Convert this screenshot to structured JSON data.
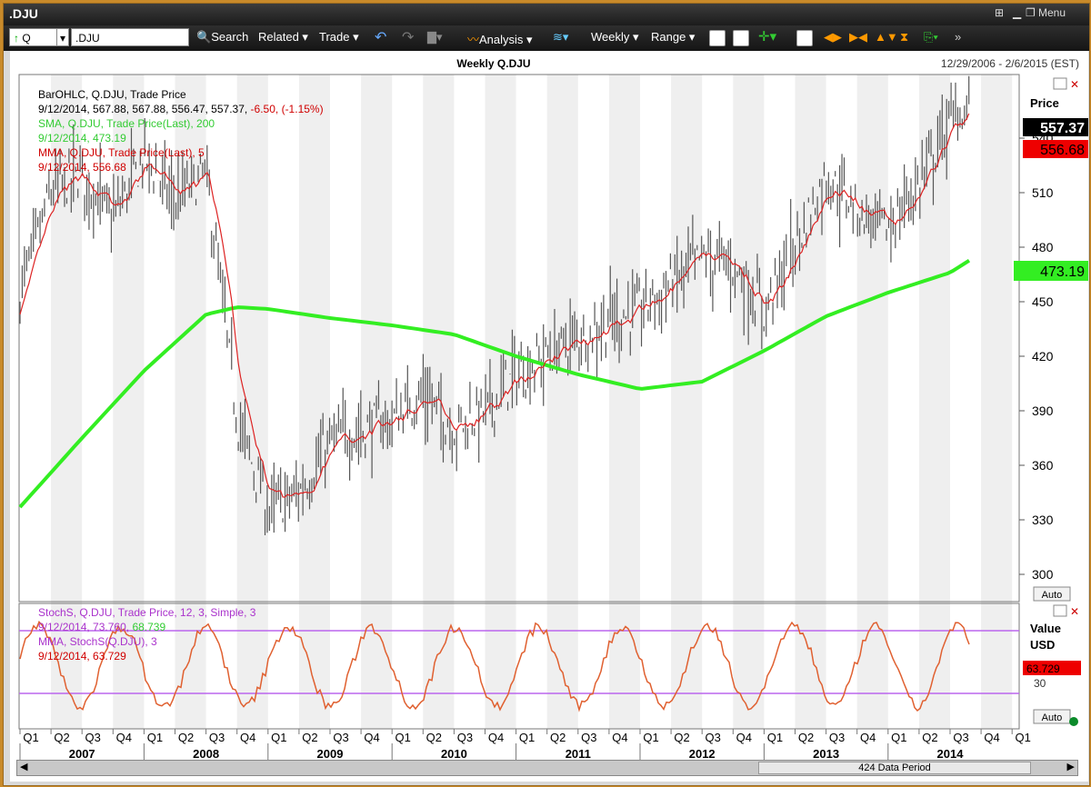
{
  "window": {
    "title": ".DJU",
    "menu_label": "Menu"
  },
  "toolbar": {
    "symbol_type": "Q",
    "symbol": ".DJU",
    "search_label": "Search",
    "related_label": "Related",
    "trade_label": "Trade",
    "analysis_label": "Analysis",
    "period_label": "Weekly",
    "range_label": "Range"
  },
  "header": {
    "title": "Weekly Q.DJU",
    "date_range": "12/29/2006 - 2/6/2015 (EST)"
  },
  "price_panel": {
    "legend": [
      {
        "text": "BarOHLC, Q.DJU, Trade Price",
        "color": "#000000"
      },
      {
        "text": "9/12/2014, 567.88, 567.88, 556.47, 557.37, ",
        "color": "#000000",
        "extra": "-6.50, (-1.15%)",
        "extra_color": "#d00000"
      },
      {
        "text": "SMA, Q.DJU, Trade Price(Last),  200",
        "color": "#33cc33"
      },
      {
        "text": "9/12/2014, 473.19",
        "color": "#33cc33"
      },
      {
        "text": "MMA, Q.DJU, Trade Price(Last),  5",
        "color": "#d00000"
      },
      {
        "text": "9/12/2014, 556.68",
        "color": "#d00000"
      }
    ],
    "axis_title": "Price",
    "y_ticks": [
      "540",
      "510",
      "480",
      "450",
      "420",
      "390",
      "360",
      "330",
      "300"
    ],
    "badges": {
      "last": "557.37",
      "mma": "556.68",
      "sma": "473.19"
    },
    "auto_label": "Auto"
  },
  "stoch_panel": {
    "legend": [
      {
        "text": "StochS, Q.DJU, Trade Price,  12, 3, Simple,  3",
        "color": "#aa33cc"
      },
      {
        "text": "9/12/2014, 73.760, ",
        "color": "#aa33cc",
        "extra": "68.739",
        "extra_color": "#33cc33"
      },
      {
        "text": "MMA, StochS(Q.DJU),  3",
        "color": "#aa33cc"
      },
      {
        "text": "9/12/2014, 63.729",
        "color": "#d00000"
      }
    ],
    "axis_title": "Value",
    "axis_unit": "USD",
    "badge": "63.729",
    "tick": "30",
    "auto_label": "Auto"
  },
  "x_axis": {
    "quarters": [
      "Q1",
      "Q2",
      "Q3",
      "Q4",
      "Q1",
      "Q2",
      "Q3",
      "Q4",
      "Q1",
      "Q2",
      "Q3",
      "Q4",
      "Q1",
      "Q2",
      "Q3",
      "Q4",
      "Q1",
      "Q2",
      "Q3",
      "Q4",
      "Q1",
      "Q2",
      "Q3",
      "Q4",
      "Q1",
      "Q2",
      "Q3",
      "Q4",
      "Q1",
      "Q2",
      "Q3",
      "Q4",
      "Q1"
    ],
    "years": [
      "2007",
      "2008",
      "2009",
      "2010",
      "2011",
      "2012",
      "2013",
      "2014"
    ]
  },
  "scrollbar": {
    "label": "424 Data Period"
  },
  "colors": {
    "sma": "#33ee22",
    "mma": "#dd2222",
    "bars": "#555555",
    "stoch": "#e06030",
    "bands": "#bb66ee"
  },
  "chart_data": [
    {
      "type": "ohlc",
      "title": "Weekly Q.DJU",
      "ylabel": "Price",
      "ylim": [
        285,
        575
      ],
      "series": [
        {
          "name": "BarOHLC, Q.DJU, Trade Price",
          "x": [
            "2007-01",
            "2007-04",
            "2007-07",
            "2007-10",
            "2008-01",
            "2008-04",
            "2008-07",
            "2008-10",
            "2009-01",
            "2009-04",
            "2009-07",
            "2009-10",
            "2010-01",
            "2010-04",
            "2010-07",
            "2010-10",
            "2011-01",
            "2011-04",
            "2011-07",
            "2011-10",
            "2012-01",
            "2012-04",
            "2012-07",
            "2012-10",
            "2013-01",
            "2013-04",
            "2013-07",
            "2013-10",
            "2014-01",
            "2014-04",
            "2014-07",
            "2014-09"
          ],
          "close": [
            455,
            510,
            520,
            495,
            530,
            505,
            520,
            385,
            335,
            345,
            372,
            380,
            385,
            400,
            380,
            390,
            410,
            420,
            430,
            440,
            445,
            460,
            475,
            470,
            445,
            480,
            520,
            500,
            490,
            515,
            550,
            557.37
          ]
        },
        {
          "name": "SMA, Q.DJU, Trade Price(Last), 200",
          "x": [
            "2007-01",
            "2007-07",
            "2008-01",
            "2008-07",
            "2008-10",
            "2009-01",
            "2009-07",
            "2010-01",
            "2010-07",
            "2011-01",
            "2011-07",
            "2012-01",
            "2012-07",
            "2013-01",
            "2013-07",
            "2014-01",
            "2014-07",
            "2014-09"
          ],
          "values": [
            337,
            375,
            412,
            443,
            447,
            446,
            441,
            437,
            432,
            420,
            410,
            402,
            406,
            423,
            442,
            455,
            466,
            473.19
          ]
        },
        {
          "name": "MMA, Q.DJU, Trade Price(Last), 5",
          "last": 556.68
        }
      ]
    },
    {
      "type": "line",
      "title": "StochS, Q.DJU, Trade Price, 12, 3, Simple, 3",
      "ylabel": "Value",
      "series": [
        {
          "name": "MMA, StochS(Q.DJU), 3",
          "last": 63.729
        },
        {
          "name": "StochS, Q.DJU, Trade Price, 12, 3, Simple, 3",
          "last": 73.76
        }
      ],
      "bands": [
        80,
        20
      ]
    }
  ]
}
